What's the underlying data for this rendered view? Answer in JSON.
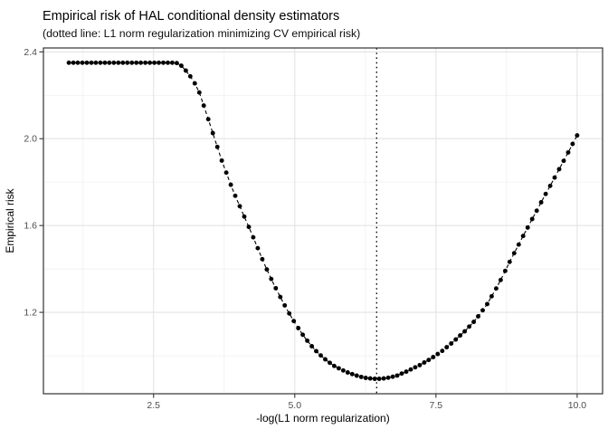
{
  "chart_data": {
    "type": "line",
    "title": "Empirical risk of HAL conditional density estimators",
    "subtitle": "(dotted line: L1 norm regularization minimizing CV empirical risk)",
    "xlabel": "-log(L1 norm regularization)",
    "ylabel": "Empirical risk",
    "x_ticks": {
      "labels": [
        "2.5",
        "5.0",
        "7.5",
        "10.0"
      ],
      "values": [
        2.5,
        5.0,
        7.5,
        10.0
      ]
    },
    "y_ticks": {
      "labels": [
        "1.2",
        "1.6",
        "2.0",
        "2.4"
      ],
      "values": [
        1.2,
        1.6,
        2.0,
        2.4
      ]
    },
    "x_minor_gridlines": [
      1.25,
      3.75,
      6.25,
      8.75
    ],
    "y_minor_gridlines": [
      1.0,
      1.4,
      1.8,
      2.2
    ],
    "xlim": [
      0.55,
      10.45
    ],
    "ylim": [
      0.825,
      2.418
    ],
    "x_range": [
      1.0,
      10.0
    ],
    "n_points": 114,
    "vline_x": 6.45,
    "grid": "on",
    "legend": "none",
    "marker": "filled-black-circle",
    "line_style": "dashed",
    "vline_style": "dotted",
    "series": [
      {
        "name": "empirical-risk-vs-regularization",
        "anchors": [
          [
            1.0,
            2.35
          ],
          [
            2.9,
            2.35
          ],
          [
            3.0,
            2.335
          ],
          [
            3.1,
            2.305
          ],
          [
            3.2,
            2.27
          ],
          [
            3.3,
            2.22
          ],
          [
            3.4,
            2.145
          ],
          [
            3.5,
            2.065
          ],
          [
            3.6,
            1.985
          ],
          [
            3.7,
            1.905
          ],
          [
            3.8,
            1.835
          ],
          [
            3.9,
            1.765
          ],
          [
            4.0,
            1.705
          ],
          [
            4.1,
            1.645
          ],
          [
            4.2,
            1.585
          ],
          [
            4.3,
            1.525
          ],
          [
            4.4,
            1.46
          ],
          [
            4.5,
            1.4
          ],
          [
            4.6,
            1.345
          ],
          [
            4.7,
            1.292
          ],
          [
            4.8,
            1.243
          ],
          [
            4.9,
            1.196
          ],
          [
            5.0,
            1.152
          ],
          [
            5.1,
            1.112
          ],
          [
            5.2,
            1.076
          ],
          [
            5.3,
            1.044
          ],
          [
            5.4,
            1.016
          ],
          [
            5.5,
            0.992
          ],
          [
            5.6,
            0.971
          ],
          [
            5.7,
            0.953
          ],
          [
            5.8,
            0.939
          ],
          [
            5.9,
            0.927
          ],
          [
            6.0,
            0.917
          ],
          [
            6.1,
            0.908
          ],
          [
            6.2,
            0.901
          ],
          [
            6.3,
            0.896
          ],
          [
            6.45,
            0.893
          ],
          [
            6.6,
            0.896
          ],
          [
            6.8,
            0.907
          ],
          [
            7.0,
            0.93
          ],
          [
            7.2,
            0.955
          ],
          [
            7.4,
            0.985
          ],
          [
            7.6,
            1.02
          ],
          [
            7.8,
            1.063
          ],
          [
            8.0,
            1.11
          ],
          [
            8.2,
            1.165
          ],
          [
            8.4,
            1.235
          ],
          [
            8.6,
            1.325
          ],
          [
            8.8,
            1.43
          ],
          [
            9.0,
            1.53
          ],
          [
            9.2,
            1.628
          ],
          [
            9.4,
            1.725
          ],
          [
            9.6,
            1.82
          ],
          [
            9.8,
            1.917
          ],
          [
            10.0,
            2.015
          ]
        ]
      }
    ],
    "colors": {
      "points": "#000000",
      "line": "#000000",
      "vline": "#000000",
      "grid_major": "#e3e3e3",
      "grid_minor": "#f1f1f1",
      "panel_border": "#333333",
      "tick": "#333333",
      "tick_label": "#4d4d4d",
      "background": "#ffffff"
    }
  }
}
